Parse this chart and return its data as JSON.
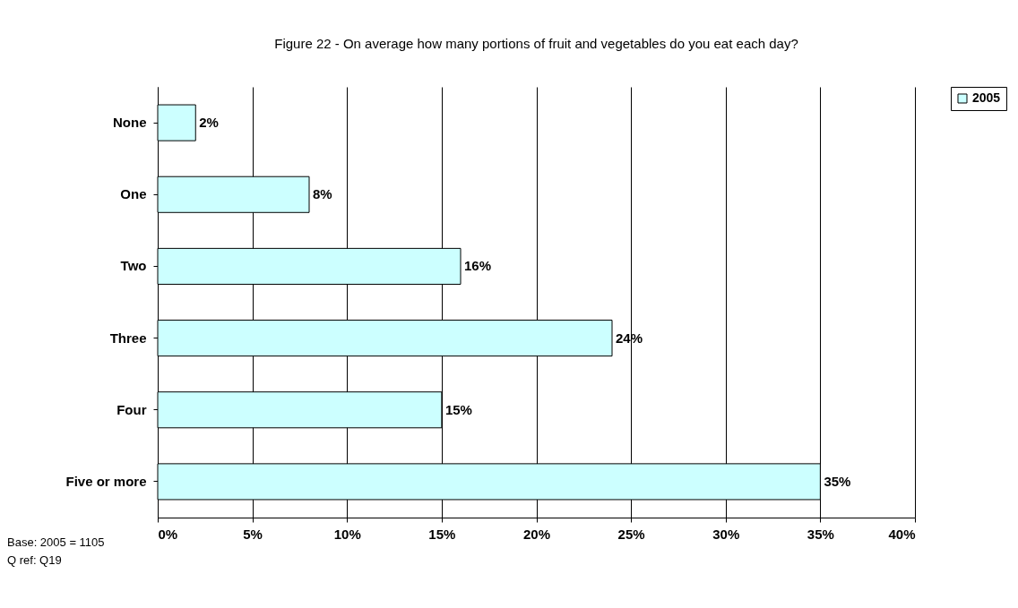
{
  "chart_data": {
    "type": "bar",
    "orientation": "horizontal",
    "title": "Figure 22 - On average how many portions of fruit and vegetables do you eat each day?",
    "categories": [
      "None",
      "One",
      "Two",
      "Three",
      "Four",
      "Five or more"
    ],
    "series": [
      {
        "name": "2005",
        "color": "#ccffff",
        "values": [
          2,
          8,
          16,
          24,
          15,
          35
        ],
        "value_labels": [
          "2%",
          "8%",
          "16%",
          "24%",
          "15%",
          "35%"
        ]
      }
    ],
    "xlim": [
      0,
      40
    ],
    "xticks": [
      {
        "value": 0,
        "label": "0%"
      },
      {
        "value": 5,
        "label": "5%"
      },
      {
        "value": 10,
        "label": "10%"
      },
      {
        "value": 15,
        "label": "15%"
      },
      {
        "value": 20,
        "label": "20%"
      },
      {
        "value": 25,
        "label": "25%"
      },
      {
        "value": 30,
        "label": "30%"
      },
      {
        "value": 35,
        "label": "35%"
      },
      {
        "value": 40,
        "label": "40%"
      }
    ],
    "grid": "x",
    "legend": "right",
    "annotations": [
      "Base: 2005 = 1105",
      "Q ref: Q19"
    ]
  }
}
